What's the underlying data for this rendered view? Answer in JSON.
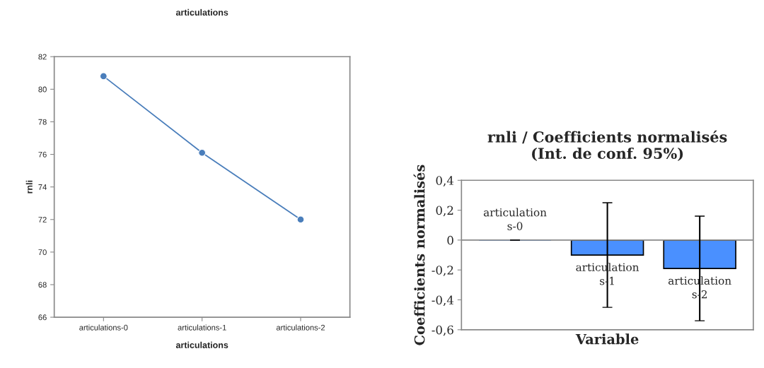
{
  "chart_data": [
    {
      "type": "line",
      "title": "articulations",
      "xlabel": "articulations",
      "ylabel": "rnli",
      "categories": [
        "articulations-0",
        "articulations-1",
        "articulations-2"
      ],
      "series": [
        {
          "color": "#4a7ebb",
          "values": [
            80.8,
            76.1,
            72.0
          ]
        }
      ],
      "ylim": [
        66,
        82
      ],
      "yticks": [
        66,
        68,
        70,
        72,
        74,
        76,
        78,
        80,
        82
      ],
      "marker": "circle",
      "line_style": "solid",
      "grid": false
    },
    {
      "type": "bar",
      "title": "rnli / Coefficients normalisés\n(Int. de conf. 95%)",
      "xlabel": "Variable",
      "ylabel": "Coefficients normalisés",
      "categories": [
        "articulation\ns-0",
        "articulation\ns-1",
        "articulation\ns-2"
      ],
      "series": [
        {
          "color": "#4a90ff",
          "values": [
            0,
            -0.1,
            -0.19
          ],
          "errors": [
            0,
            0.35,
            0.35
          ]
        }
      ],
      "ylim": [
        -0.6,
        0.4
      ],
      "yticks": [
        {
          "value": -0.6,
          "label": "-0,6"
        },
        {
          "value": -0.4,
          "label": "-0,4"
        },
        {
          "value": -0.2,
          "label": "-0,2"
        },
        {
          "value": 0,
          "label": "0"
        },
        {
          "value": 0.2,
          "label": "0,2"
        },
        {
          "value": 0.4,
          "label": "0,4"
        }
      ],
      "ref_lines": [
        {
          "axis": "y",
          "value": 0,
          "color": "#888888",
          "line_style": "solid"
        }
      ],
      "tick_labels": "y",
      "grid": false
    }
  ]
}
